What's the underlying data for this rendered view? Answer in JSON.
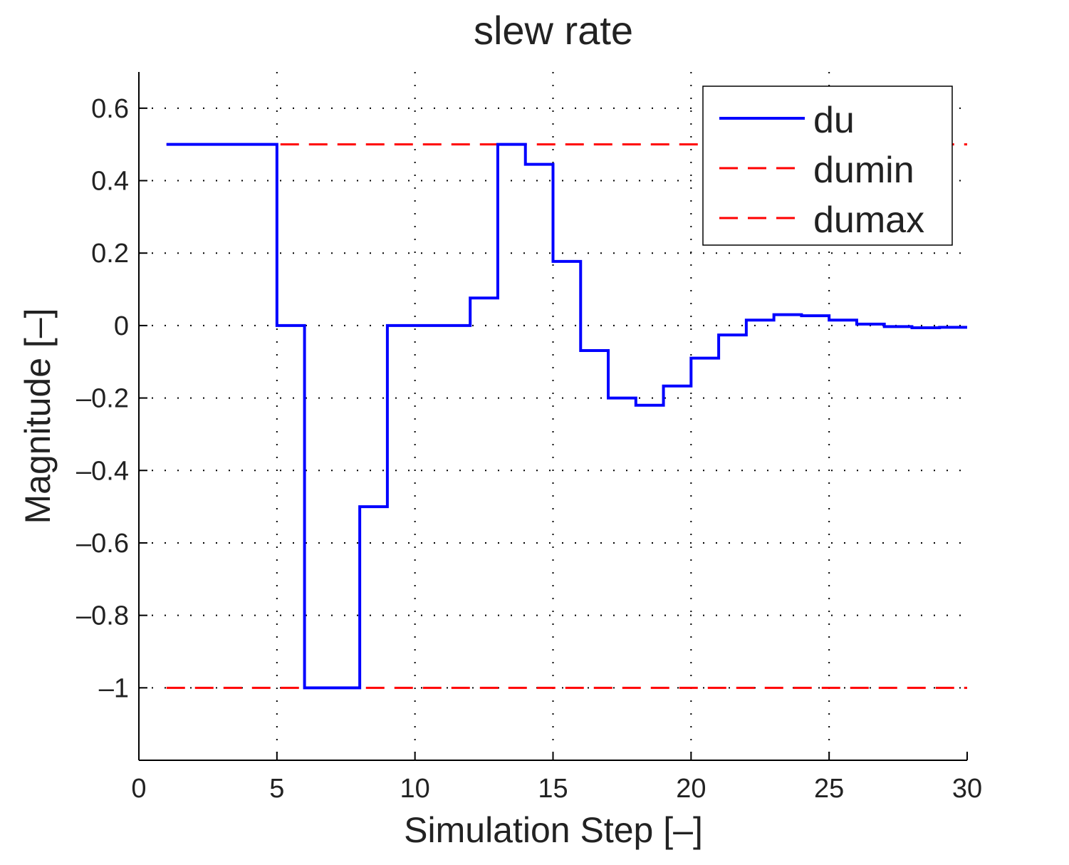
{
  "chart_data": {
    "type": "line",
    "title": "slew rate",
    "xlabel": "Simulation Step [–]",
    "ylabel": "Magnitude [–]",
    "xlim": [
      0,
      30
    ],
    "ylim": [
      -1.2,
      0.7
    ],
    "xticks": [
      0,
      5,
      10,
      15,
      20,
      25,
      30
    ],
    "xtick_labels": [
      "0",
      "5",
      "10",
      "15",
      "20",
      "25",
      "30"
    ],
    "yticks": [
      0.6,
      0.4,
      0.2,
      0,
      -0.2,
      -0.4,
      -0.6,
      -0.8,
      -1
    ],
    "ytick_labels": [
      "0.6",
      "0.4",
      "0.2",
      "0",
      "–0.2",
      "–0.4",
      "–0.6",
      "–0.8",
      "–1"
    ],
    "grid": true,
    "legend_position": "top-right",
    "series": [
      {
        "name": "du",
        "style": "stairs",
        "color": "#0000ff",
        "x": [
          1,
          2,
          3,
          4,
          5,
          6,
          7,
          8,
          9,
          10,
          11,
          12,
          13,
          14,
          15,
          16,
          17,
          18,
          19,
          20,
          21,
          22,
          23,
          24,
          25,
          26,
          27,
          28,
          29,
          30
        ],
        "y": [
          0.5,
          0.5,
          0.5,
          0.5,
          0,
          -1,
          -1,
          -0.5,
          0,
          0,
          0,
          0.076,
          0.5,
          0.445,
          0.177,
          -0.069,
          -0.2,
          -0.22,
          -0.167,
          -0.09,
          -0.026,
          0.015,
          0.03,
          0.027,
          0.015,
          0.004,
          -0.003,
          -0.006,
          -0.005,
          -0.005
        ]
      },
      {
        "name": "dumin",
        "style": "dashed",
        "color": "#ff0000",
        "x": [
          1,
          30
        ],
        "y": [
          -1,
          -1
        ]
      },
      {
        "name": "dumax",
        "style": "dashed",
        "color": "#ff0000",
        "x": [
          1,
          30
        ],
        "y": [
          0.5,
          0.5
        ]
      }
    ]
  }
}
